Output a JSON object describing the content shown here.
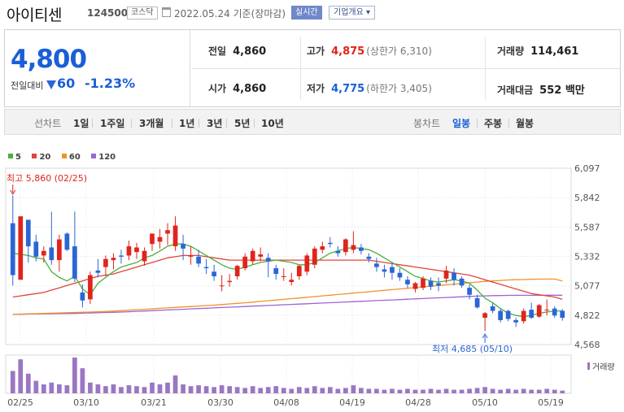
{
  "header": {
    "name": "아이티센",
    "code": "124500",
    "market": "코스닥",
    "date": "2022.05.24 기준(장마감)",
    "realtime_label": "실시간",
    "info_label": "기업개요 ▾"
  },
  "price": {
    "current": "4,800",
    "change_label": "전일대비",
    "change_value": "60",
    "change_pct": "-1.23%",
    "prev_label": "전일",
    "prev": "4,860",
    "open_label": "시가",
    "open": "4,860",
    "high_label": "고가",
    "high": "4,875",
    "upper_limit": "(상한가 6,310)",
    "low_label": "저가",
    "low": "4,775",
    "lower_limit": "(하한가 3,405)",
    "volume_label": "거래량",
    "volume": "114,461",
    "amount_label": "거래대금",
    "amount": "552 백만"
  },
  "tabs": {
    "line_label": "선차트",
    "line_periods": [
      "1일",
      "1주일",
      "3개월",
      "1년",
      "3년",
      "5년",
      "10년"
    ],
    "candle_label": "봉차트",
    "candle_periods": [
      "일봉",
      "주봉",
      "월봉"
    ],
    "active_candle": "일봉"
  },
  "legend": [
    {
      "label": "5",
      "color": "#4caf3a"
    },
    {
      "label": "20",
      "color": "#e0443c"
    },
    {
      "label": "60",
      "color": "#f0922b"
    },
    {
      "label": "120",
      "color": "#9b66d1"
    }
  ],
  "chart_data": {
    "type": "candlestick",
    "y_ticks": [
      "6,097",
      "5,842",
      "5,587",
      "5,332",
      "5,077",
      "4,822",
      "4,568"
    ],
    "ylim": [
      4568,
      6097
    ],
    "x_ticks": [
      "02/25",
      "03/10",
      "03/21",
      "03/30",
      "04/08",
      "04/19",
      "04/28",
      "05/10",
      "05/19"
    ],
    "high_annotation": "최고 5,860 (02/25)",
    "low_annotation": "최저 4,685 (05/10)",
    "volume_label": "거래량",
    "up_color": "#e0241c",
    "down_color": "#2b66d6",
    "candles": [
      [
        5620,
        5860,
        5080,
        5170
      ],
      [
        5130,
        5680,
        5130,
        5680
      ],
      [
        5650,
        5650,
        5280,
        5420
      ],
      [
        5460,
        5520,
        5290,
        5330
      ],
      [
        5340,
        5420,
        5280,
        5380
      ],
      [
        5410,
        5720,
        5260,
        5300
      ],
      [
        5300,
        5520,
        5200,
        5480
      ],
      [
        5530,
        5540,
        5380,
        5390
      ],
      [
        5420,
        5720,
        5110,
        5140
      ],
      [
        5020,
        5090,
        4890,
        4950
      ],
      [
        4960,
        5200,
        4920,
        5170
      ],
      [
        5210,
        5310,
        5150,
        5190
      ],
      [
        5240,
        5340,
        5160,
        5310
      ],
      [
        5300,
        5360,
        5220,
        5320
      ],
      [
        5340,
        5390,
        5270,
        5330
      ],
      [
        5340,
        5470,
        5300,
        5420
      ],
      [
        5370,
        5450,
        5310,
        5410
      ],
      [
        5290,
        5410,
        5250,
        5380
      ],
      [
        5440,
        5530,
        5380,
        5530
      ],
      [
        5460,
        5570,
        5400,
        5500
      ],
      [
        5530,
        5620,
        5430,
        5560
      ],
      [
        5420,
        5680,
        5380,
        5600
      ],
      [
        5440,
        5520,
        5300,
        5400
      ],
      [
        5330,
        5420,
        5260,
        5340
      ],
      [
        5330,
        5390,
        5240,
        5270
      ],
      [
        5240,
        5310,
        5180,
        5230
      ],
      [
        5200,
        5260,
        5120,
        5160
      ],
      [
        5080,
        5170,
        5030,
        5080
      ],
      [
        5110,
        5180,
        5070,
        5120
      ],
      [
        5160,
        5260,
        5130,
        5250
      ],
      [
        5230,
        5360,
        5210,
        5330
      ],
      [
        5290,
        5400,
        5260,
        5380
      ],
      [
        5330,
        5410,
        5290,
        5350
      ],
      [
        5320,
        5360,
        5150,
        5290
      ],
      [
        5230,
        5260,
        5130,
        5180
      ],
      [
        5160,
        5230,
        5120,
        5160
      ],
      [
        5110,
        5190,
        5080,
        5130
      ],
      [
        5160,
        5260,
        5130,
        5250
      ],
      [
        5200,
        5360,
        5170,
        5340
      ],
      [
        5260,
        5420,
        5230,
        5400
      ],
      [
        5390,
        5460,
        5360,
        5420
      ],
      [
        5450,
        5500,
        5410,
        5440
      ],
      [
        5380,
        5420,
        5330,
        5360
      ],
      [
        5370,
        5490,
        5340,
        5480
      ],
      [
        5390,
        5550,
        5360,
        5430
      ],
      [
        5410,
        5440,
        5350,
        5380
      ],
      [
        5330,
        5360,
        5280,
        5310
      ],
      [
        5270,
        5320,
        5200,
        5240
      ],
      [
        5220,
        5260,
        5150,
        5200
      ],
      [
        5240,
        5280,
        5130,
        5190
      ],
      [
        5190,
        5230,
        5120,
        5150
      ],
      [
        5130,
        5160,
        5060,
        5090
      ],
      [
        5050,
        5110,
        5020,
        5100
      ],
      [
        5060,
        5160,
        5040,
        5140
      ],
      [
        5120,
        5150,
        5040,
        5070
      ],
      [
        5100,
        5150,
        5030,
        5080
      ],
      [
        5140,
        5250,
        5100,
        5210
      ],
      [
        5190,
        5230,
        5080,
        5130
      ],
      [
        5140,
        5160,
        5060,
        5080
      ],
      [
        5060,
        5090,
        4960,
        5000
      ],
      [
        4970,
        5000,
        4880,
        4890
      ],
      [
        4800,
        4850,
        4685,
        4840
      ],
      [
        4900,
        4930,
        4840,
        4860
      ],
      [
        4860,
        4880,
        4760,
        4780
      ],
      [
        4860,
        4870,
        4770,
        4790
      ],
      [
        4780,
        4800,
        4720,
        4760
      ],
      [
        4770,
        4880,
        4750,
        4860
      ],
      [
        4870,
        4930,
        4790,
        4800
      ],
      [
        4810,
        4920,
        4800,
        4910
      ],
      [
        4870,
        4960,
        4820,
        4870
      ],
      [
        4880,
        4900,
        4800,
        4820
      ],
      [
        4860,
        4875,
        4775,
        4800
      ]
    ],
    "volumes": [
      25,
      38,
      22,
      14,
      10,
      12,
      10,
      9,
      40,
      28,
      12,
      10,
      8,
      10,
      7,
      9,
      8,
      7,
      12,
      10,
      12,
      20,
      10,
      8,
      9,
      8,
      7,
      9,
      8,
      7,
      6,
      8,
      6,
      7,
      8,
      6,
      5,
      7,
      6,
      8,
      6,
      7,
      5,
      6,
      9,
      6,
      5,
      5,
      4,
      5,
      4,
      5,
      4,
      4,
      5,
      4,
      5,
      4,
      4,
      5,
      6,
      7,
      5,
      4,
      5,
      4,
      5,
      4,
      4,
      5,
      4,
      3
    ],
    "ma5": [
      5360,
      5350,
      5340,
      5320,
      5310,
      5200,
      5150,
      5120,
      5160,
      5050,
      5000,
      5100,
      5150,
      5200,
      5240,
      5260,
      5280,
      5320,
      5340,
      5380,
      5420,
      5440,
      5440,
      5420,
      5380,
      5340,
      5300,
      5260,
      5230,
      5220,
      5240,
      5260,
      5280,
      5290,
      5300,
      5290,
      5280,
      5260,
      5260,
      5280,
      5320,
      5360,
      5380,
      5400,
      5410,
      5400,
      5390,
      5360,
      5320,
      5280,
      5240,
      5200,
      5160,
      5140,
      5120,
      5110,
      5120,
      5130,
      5120,
      5100,
      5040,
      4970,
      4930,
      4880,
      4840,
      4820,
      4810,
      4820,
      4840,
      4850,
      4860,
      4860
    ],
    "ma20": [
      4980,
      4990,
      5000,
      5010,
      5020,
      5040,
      5060,
      5080,
      5100,
      5120,
      5140,
      5160,
      5170,
      5180,
      5200,
      5220,
      5240,
      5260,
      5280,
      5300,
      5320,
      5330,
      5340,
      5340,
      5340,
      5330,
      5320,
      5310,
      5300,
      5300,
      5300,
      5300,
      5300,
      5300,
      5300,
      5300,
      5300,
      5300,
      5300,
      5300,
      5300,
      5300,
      5300,
      5300,
      5300,
      5300,
      5300,
      5290,
      5280,
      5270,
      5260,
      5250,
      5240,
      5230,
      5220,
      5210,
      5200,
      5190,
      5180,
      5170,
      5150,
      5130,
      5110,
      5090,
      5070,
      5050,
      5030,
      5010,
      5000,
      4990,
      4980,
      4960
    ],
    "ma60": [
      4830,
      4832,
      4834,
      4836,
      4838,
      4840,
      4842,
      4844,
      4846,
      4848,
      4850,
      4852,
      4855,
      4858,
      4862,
      4866,
      4870,
      4874,
      4878,
      4882,
      4886,
      4890,
      4894,
      4898,
      4902,
      4906,
      4910,
      4915,
      4920,
      4925,
      4930,
      4936,
      4942,
      4948,
      4954,
      4960,
      4966,
      4972,
      4978,
      4984,
      4990,
      4996,
      5002,
      5008,
      5014,
      5020,
      5026,
      5032,
      5038,
      5044,
      5050,
      5056,
      5062,
      5068,
      5074,
      5080,
      5086,
      5092,
      5098,
      5104,
      5110,
      5116,
      5120,
      5124,
      5128,
      5130,
      5132,
      5134,
      5135,
      5136,
      5136,
      5120
    ],
    "ma120": [
      4830,
      4831,
      4832,
      4833,
      4834,
      4835,
      4836,
      4837,
      4838,
      4840,
      4842,
      4844,
      4846,
      4848,
      4850,
      4853,
      4856,
      4859,
      4862,
      4865,
      4868,
      4871,
      4874,
      4877,
      4880,
      4883,
      4886,
      4889,
      4892,
      4895,
      4898,
      4901,
      4904,
      4907,
      4910,
      4913,
      4916,
      4919,
      4922,
      4925,
      4928,
      4931,
      4934,
      4937,
      4940,
      4943,
      4946,
      4949,
      4952,
      4955,
      4958,
      4961,
      4964,
      4967,
      4970,
      4973,
      4976,
      4979,
      4982,
      4985,
      4988,
      4990,
      4992,
      4993,
      4994,
      4995,
      4995,
      4995,
      4996,
      4996,
      4996,
      4996
    ]
  }
}
